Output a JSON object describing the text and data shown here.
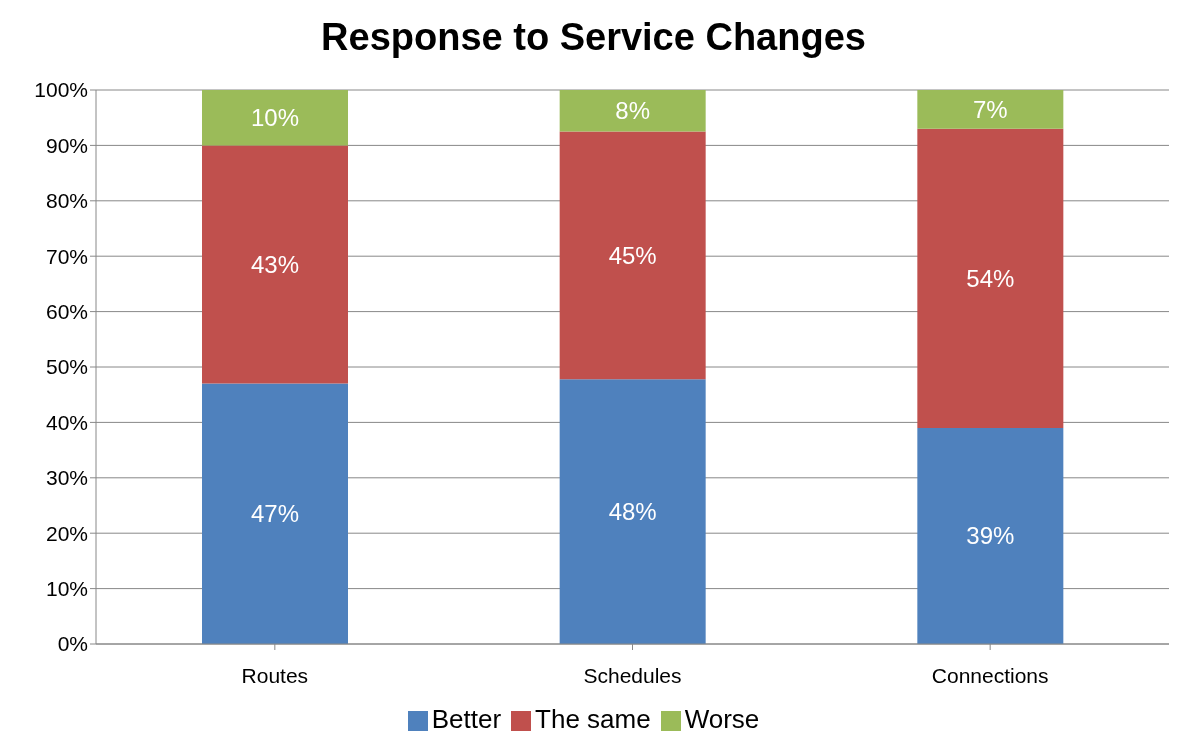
{
  "chart_data": {
    "type": "bar",
    "title": "Response to Service Changes",
    "categories": [
      "Routes",
      "Schedules",
      "Connections"
    ],
    "stacked": true,
    "series": [
      {
        "name": "Better",
        "color": "#4f81bd",
        "values": [
          47,
          47.8,
          39
        ],
        "value_labels": [
          "47%",
          "48%",
          "39%"
        ]
      },
      {
        "name": "The same",
        "color": "#c0504d",
        "values": [
          43,
          44.7,
          54
        ],
        "value_labels": [
          "43%",
          "45%",
          "54%"
        ]
      },
      {
        "name": "Worse",
        "color": "#9bbb59",
        "values": [
          10,
          7.5,
          7
        ],
        "value_labels": [
          "10%",
          "8%",
          "7%"
        ]
      }
    ],
    "ylim": [
      0,
      100
    ],
    "yticks": [
      {
        "value": 0,
        "label": "0%"
      },
      {
        "value": 10,
        "label": "10%"
      },
      {
        "value": 20,
        "label": "20%"
      },
      {
        "value": 30,
        "label": "30%"
      },
      {
        "value": 40,
        "label": "40%"
      },
      {
        "value": 50,
        "label": "50%"
      },
      {
        "value": 60,
        "label": "60%"
      },
      {
        "value": 70,
        "label": "70%"
      },
      {
        "value": 80,
        "label": "80%"
      },
      {
        "value": 90,
        "label": "90%"
      },
      {
        "value": 100,
        "label": "100%"
      }
    ],
    "grid": "y",
    "legend": "bottom"
  }
}
